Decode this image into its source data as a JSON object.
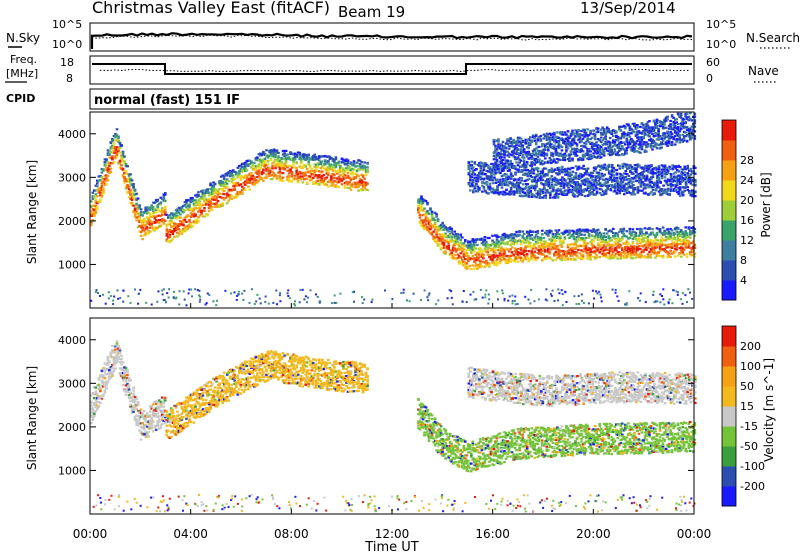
{
  "header": {
    "title": "Christmas Valley East (fitACF)",
    "beam": "Beam 19",
    "date": "13/Sep/2014"
  },
  "sky_panel": {
    "left_label": "N.Sky",
    "right_label": "N.Search",
    "left_ticks": [
      "10^5",
      "10^0"
    ],
    "right_ticks": [
      "10^5",
      "10^0"
    ]
  },
  "freq_panel": {
    "left_label_1": "Freq.",
    "left_label_2": "[MHz]",
    "right_label": "Nave",
    "left_ticks": [
      "18",
      "8"
    ],
    "right_ticks": [
      "60",
      "0"
    ]
  },
  "cpid": {
    "label": "CPID",
    "value": "normal (fast) 151 IF"
  },
  "chart_data": [
    {
      "type": "heatmap",
      "name": "power",
      "ylabel": "Slant Range [km]",
      "xlabel": "Time UT",
      "yticks": [
        "1000",
        "2000",
        "3000",
        "4000"
      ],
      "ylim": [
        0,
        4500
      ],
      "colorbar_label": "Power [dB]",
      "colorbar_ticks": [
        "4",
        "8",
        "12",
        "16",
        "20",
        "24",
        "28"
      ],
      "colorbar_colors": [
        "#1a1aff",
        "#2a4fb0",
        "#3e7fa0",
        "#3aa36a",
        "#9fcf38",
        "#f2d81c",
        "#f6a014",
        "#f06010",
        "#e81a0a"
      ],
      "bands": [
        {
          "t": [
            0.0,
            1.0,
            2.0,
            3.0
          ],
          "r": [
            2100,
            3700,
            1800,
            2200
          ],
          "color": "#e81a0a"
        },
        {
          "t": [
            3.0,
            5.0,
            7.0,
            9.0,
            11.0
          ],
          "r": [
            1700,
            2500,
            3200,
            3050,
            2900
          ],
          "color": "#3aa36a"
        },
        {
          "t": [
            13.0,
            14.0,
            15.0,
            17.0,
            20.0,
            24.0
          ],
          "r": [
            2200,
            1500,
            1100,
            1300,
            1350,
            1400
          ],
          "color": "#e81a0a"
        },
        {
          "t": [
            15.0,
            18.0,
            21.0,
            24.0
          ],
          "r": [
            2900,
            2750,
            2850,
            2800
          ],
          "color": "#2a4fb0"
        },
        {
          "t": [
            16.0,
            19.0,
            22.0,
            24.0
          ],
          "r": [
            3400,
            3600,
            3800,
            4100
          ],
          "color": "#2a4fb0"
        }
      ]
    },
    {
      "type": "heatmap",
      "name": "velocity",
      "ylabel": "Slant Range [km]",
      "xlabel": "Time UT",
      "yticks": [
        "1000",
        "2000",
        "3000",
        "4000"
      ],
      "ylim": [
        0,
        4500
      ],
      "colorbar_label": "Velocity [m s^-1]",
      "colorbar_ticks": [
        "200",
        "100",
        "50",
        "15",
        "-15",
        "-50",
        "-100",
        "-200"
      ],
      "colorbar_colors": [
        "#1a1aff",
        "#2a4fb0",
        "#3a9e3a",
        "#74c43a",
        "#c8c8c8",
        "#f2b81c",
        "#f6a014",
        "#f06010",
        "#e81a0a"
      ],
      "bands": [
        {
          "t": [
            0.0,
            1.0,
            2.0,
            3.0
          ],
          "r": [
            2300,
            3600,
            1900,
            2300
          ],
          "color": "#c8c8c8"
        },
        {
          "t": [
            3.0,
            5.0,
            7.0,
            9.0,
            11.0
          ],
          "r": [
            1900,
            2700,
            3300,
            3100,
            3000
          ],
          "color": "#f2b81c"
        },
        {
          "t": [
            13.0,
            14.0,
            15.0,
            17.0,
            20.0,
            24.0
          ],
          "r": [
            2200,
            1500,
            1200,
            1500,
            1600,
            1650
          ],
          "color": "#74c43a"
        },
        {
          "t": [
            15.0,
            18.0,
            21.0,
            24.0
          ],
          "r": [
            2900,
            2700,
            2800,
            2750
          ],
          "color": "#c8c8c8"
        }
      ]
    }
  ],
  "xaxis": {
    "label": "Time UT",
    "ticks": [
      "00:00",
      "04:00",
      "08:00",
      "12:00",
      "16:00",
      "20:00",
      "00:00"
    ]
  }
}
